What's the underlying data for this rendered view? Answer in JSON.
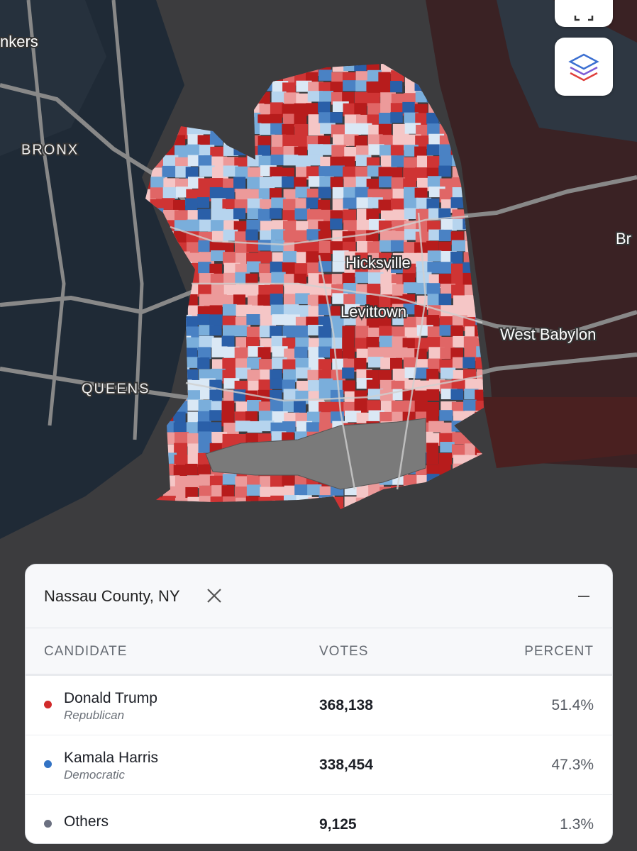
{
  "map": {
    "labels": [
      "nkers",
      "BRONX",
      "QUEENS",
      "Hicksville",
      "Levittown",
      "West Babylon",
      "Br"
    ]
  },
  "panel": {
    "title": "Nassau County, NY",
    "columns": [
      "CANDIDATE",
      "VOTES",
      "PERCENT"
    ],
    "rows": [
      {
        "name": "Donald Trump",
        "party": "Republican",
        "votes": "368,138",
        "percent": "51.4%"
      },
      {
        "name": "Kamala Harris",
        "party": "Democratic",
        "votes": "338,454",
        "percent": "47.3%"
      },
      {
        "name": "Others",
        "votes": "9,125",
        "percent": "1.3%"
      }
    ]
  }
}
